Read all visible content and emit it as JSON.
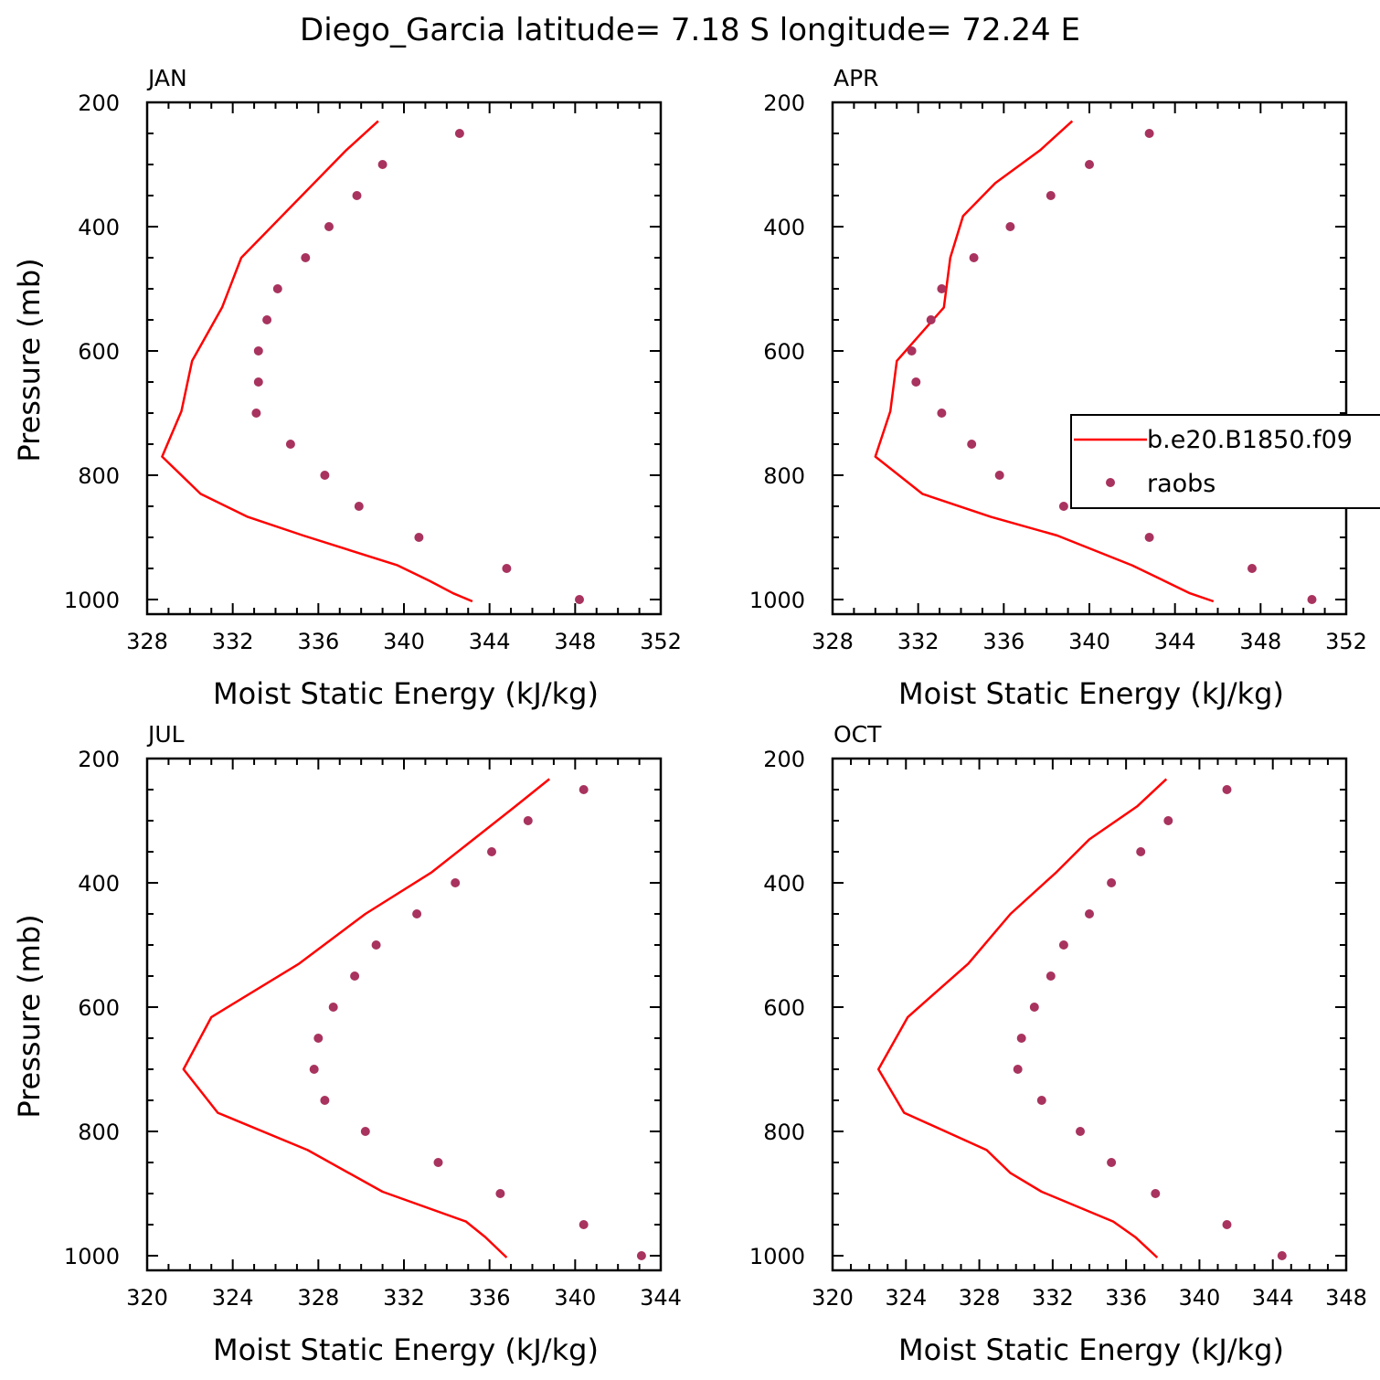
{
  "title": "Diego_Garcia  latitude= 7.18 S longitude= 72.24 E",
  "chart_data": [
    {
      "type": "line",
      "panel": "JAN",
      "xlabel": "Moist Static Energy (kJ/kg)",
      "ylabel": "Pressure (mb)",
      "xlim": [
        328,
        352
      ],
      "ylim": [
        200,
        1000
      ],
      "xticks": [
        328,
        332,
        336,
        340,
        344,
        348,
        352
      ],
      "yticks": [
        200,
        400,
        600,
        800,
        1000
      ],
      "y_inverted": true,
      "legend": false,
      "series": [
        {
          "name": "b.e20.B1850.f09",
          "kind": "line",
          "color": "#ff0000",
          "points": [
            [
              338.8,
              230
            ],
            [
              337.3,
              277
            ],
            [
              334.3,
              383
            ],
            [
              332.4,
              450
            ],
            [
              331.5,
              530
            ],
            [
              330.1,
              616
            ],
            [
              329.6,
              697
            ],
            [
              328.7,
              770
            ],
            [
              330.5,
              830
            ],
            [
              332.7,
              867
            ],
            [
              335.3,
              897
            ],
            [
              339.7,
              945
            ],
            [
              341.2,
              970
            ],
            [
              342.3,
              990
            ],
            [
              343.2,
              1003
            ]
          ]
        },
        {
          "name": "raobs",
          "kind": "scatter",
          "color": "#a8335e",
          "points": [
            [
              342.6,
              250
            ],
            [
              339.0,
              300
            ],
            [
              337.8,
              350
            ],
            [
              336.5,
              400
            ],
            [
              335.4,
              450
            ],
            [
              334.1,
              500
            ],
            [
              333.6,
              550
            ],
            [
              333.2,
              600
            ],
            [
              333.2,
              650
            ],
            [
              333.1,
              700
            ],
            [
              334.7,
              750
            ],
            [
              336.3,
              800
            ],
            [
              337.9,
              850
            ],
            [
              340.7,
              900
            ],
            [
              344.8,
              950
            ],
            [
              348.2,
              1000
            ]
          ]
        }
      ]
    },
    {
      "type": "line",
      "panel": "APR",
      "xlabel": "Moist Static Energy (kJ/kg)",
      "ylabel": "",
      "xlim": [
        328,
        352
      ],
      "ylim": [
        200,
        1000
      ],
      "xticks": [
        328,
        332,
        336,
        340,
        344,
        348,
        352
      ],
      "yticks": [
        200,
        400,
        600,
        800,
        1000
      ],
      "y_inverted": true,
      "legend": true,
      "legend_placement": "right, clipped at panel edge",
      "series": [
        {
          "name": "b.e20.B1850.f09",
          "kind": "line",
          "color": "#ff0000",
          "points": [
            [
              339.2,
              230
            ],
            [
              337.7,
              277
            ],
            [
              335.6,
              330
            ],
            [
              334.1,
              383
            ],
            [
              333.5,
              450
            ],
            [
              333.2,
              530
            ],
            [
              331.0,
              616
            ],
            [
              330.7,
              697
            ],
            [
              330.0,
              770
            ],
            [
              332.2,
              830
            ],
            [
              335.4,
              867
            ],
            [
              338.5,
              897
            ],
            [
              342.0,
              945
            ],
            [
              343.5,
              970
            ],
            [
              344.7,
              990
            ],
            [
              345.8,
              1003
            ]
          ]
        },
        {
          "name": "raobs",
          "kind": "scatter",
          "color": "#a8335e",
          "points": [
            [
              342.8,
              250
            ],
            [
              340.0,
              300
            ],
            [
              338.2,
              350
            ],
            [
              336.3,
              400
            ],
            [
              334.6,
              450
            ],
            [
              333.1,
              500
            ],
            [
              332.6,
              550
            ],
            [
              331.7,
              600
            ],
            [
              331.9,
              650
            ],
            [
              333.1,
              700
            ],
            [
              334.5,
              750
            ],
            [
              335.8,
              800
            ],
            [
              338.8,
              850
            ],
            [
              342.8,
              900
            ],
            [
              347.6,
              950
            ],
            [
              350.4,
              1000
            ]
          ]
        }
      ]
    },
    {
      "type": "line",
      "panel": "JUL",
      "xlabel": "Moist Static Energy (kJ/kg)",
      "ylabel": "Pressure (mb)",
      "xlim": [
        320,
        344
      ],
      "ylim": [
        200,
        1000
      ],
      "xticks": [
        320,
        324,
        328,
        332,
        336,
        340,
        344
      ],
      "yticks": [
        200,
        400,
        600,
        800,
        1000
      ],
      "y_inverted": true,
      "legend": false,
      "series": [
        {
          "name": "b.e20.B1850.f09",
          "kind": "line",
          "color": "#ff0000",
          "points": [
            [
              338.8,
              233
            ],
            [
              337.2,
              277
            ],
            [
              333.3,
              383
            ],
            [
              330.2,
              450
            ],
            [
              327.1,
              530
            ],
            [
              323.0,
              616
            ],
            [
              321.7,
              700
            ],
            [
              323.3,
              770
            ],
            [
              327.5,
              830
            ],
            [
              331.0,
              897
            ],
            [
              334.9,
              945
            ],
            [
              335.8,
              970
            ],
            [
              336.8,
              1003
            ]
          ]
        },
        {
          "name": "raobs",
          "kind": "scatter",
          "color": "#a8335e",
          "points": [
            [
              340.4,
              250
            ],
            [
              337.8,
              300
            ],
            [
              336.1,
              350
            ],
            [
              334.4,
              400
            ],
            [
              332.6,
              450
            ],
            [
              330.7,
              500
            ],
            [
              329.7,
              550
            ],
            [
              328.7,
              600
            ],
            [
              328.0,
              650
            ],
            [
              327.8,
              700
            ],
            [
              328.3,
              750
            ],
            [
              330.2,
              800
            ],
            [
              333.6,
              850
            ],
            [
              336.5,
              900
            ],
            [
              340.4,
              950
            ],
            [
              343.1,
              1000
            ]
          ]
        }
      ]
    },
    {
      "type": "line",
      "panel": "OCT",
      "xlabel": "Moist Static Energy (kJ/kg)",
      "ylabel": "",
      "xlim": [
        320,
        348
      ],
      "ylim": [
        200,
        1000
      ],
      "xticks": [
        320,
        324,
        328,
        332,
        336,
        340,
        344,
        348
      ],
      "yticks": [
        200,
        400,
        600,
        800,
        1000
      ],
      "y_inverted": true,
      "legend": false,
      "series": [
        {
          "name": "b.e20.B1850.f09",
          "kind": "line",
          "color": "#ff0000",
          "points": [
            [
              338.2,
              233
            ],
            [
              336.6,
              277
            ],
            [
              334.0,
              330
            ],
            [
              332.2,
              383
            ],
            [
              329.7,
              450
            ],
            [
              327.4,
              530
            ],
            [
              324.1,
              616
            ],
            [
              322.5,
              700
            ],
            [
              323.9,
              770
            ],
            [
              328.4,
              830
            ],
            [
              329.7,
              867
            ],
            [
              331.4,
              897
            ],
            [
              335.3,
              945
            ],
            [
              336.5,
              970
            ],
            [
              337.7,
              1003
            ]
          ]
        },
        {
          "name": "raobs",
          "kind": "scatter",
          "color": "#a8335e",
          "points": [
            [
              341.5,
              250
            ],
            [
              338.3,
              300
            ],
            [
              336.8,
              350
            ],
            [
              335.2,
              400
            ],
            [
              334.0,
              450
            ],
            [
              332.6,
              500
            ],
            [
              331.9,
              550
            ],
            [
              331.0,
              600
            ],
            [
              330.3,
              650
            ],
            [
              330.1,
              700
            ],
            [
              331.4,
              750
            ],
            [
              333.5,
              800
            ],
            [
              335.2,
              850
            ],
            [
              337.6,
              900
            ],
            [
              341.5,
              950
            ],
            [
              344.5,
              1000
            ]
          ]
        }
      ]
    }
  ]
}
